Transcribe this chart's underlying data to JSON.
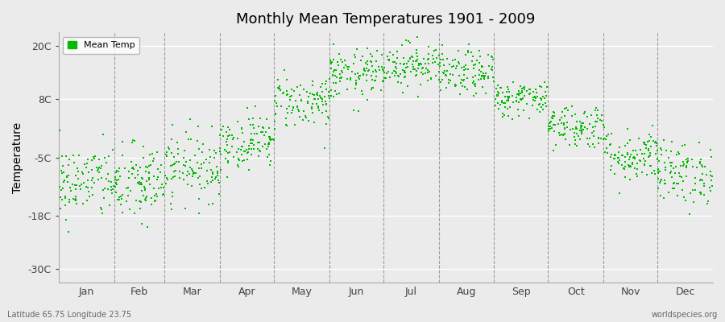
{
  "title": "Monthly Mean Temperatures 1901 - 2009",
  "ylabel": "Temperature",
  "xlabel_bottom_left": "Latitude 65.75 Longitude 23.75",
  "xlabel_bottom_right": "worldspecies.org",
  "legend_label": "Mean Temp",
  "dot_color": "#00BB00",
  "background_color": "#EBEBEB",
  "plot_bg_color": "#EBEBEB",
  "yticks": [
    -30,
    -18,
    -5,
    8,
    20
  ],
  "ytick_labels": [
    "-30C",
    "-18C",
    "-5C",
    "8C",
    "20C"
  ],
  "ylim": [
    -33,
    23
  ],
  "months": [
    "Jan",
    "Feb",
    "Mar",
    "Apr",
    "May",
    "Jun",
    "Jul",
    "Aug",
    "Sep",
    "Oct",
    "Nov",
    "Dec"
  ],
  "month_days": [
    31,
    28,
    31,
    30,
    31,
    30,
    31,
    31,
    30,
    31,
    30,
    31
  ],
  "month_means": [
    -10.5,
    -11.0,
    -7.0,
    -1.5,
    7.5,
    13.5,
    15.8,
    13.8,
    8.2,
    2.0,
    -4.5,
    -8.5
  ],
  "month_stds": [
    4.2,
    4.5,
    3.8,
    3.0,
    3.0,
    2.8,
    2.5,
    2.5,
    2.0,
    2.5,
    3.0,
    3.5
  ],
  "n_years": 109,
  "seed": 42,
  "dot_size": 3,
  "dot_marker": "s",
  "alternating_colors": [
    "#E8E8E8",
    "#DCDCDC"
  ]
}
